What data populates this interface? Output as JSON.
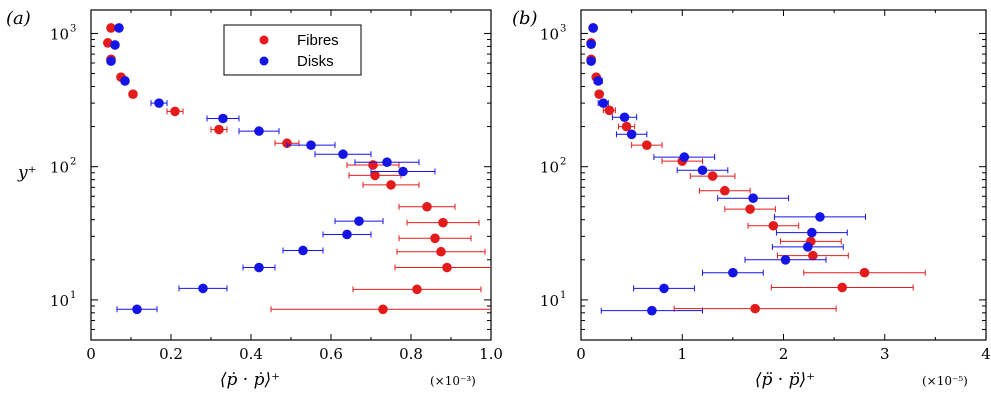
{
  "colors": {
    "fibres": "#e41b1b",
    "disks": "#1414e6",
    "axis": "#000000"
  },
  "legend": {
    "entries": [
      "Fibres",
      "Disks"
    ]
  },
  "chart_data": [
    {
      "type": "scatter",
      "panel_label": "(a)",
      "title": "",
      "xlabel": "⟨ṗ · ṗ⟩⁺",
      "ylabel": "y⁺",
      "x_multiplier": "(×10⁻³)",
      "xlim": [
        0,
        1.0
      ],
      "ylim": [
        5,
        1500
      ],
      "yscale": "log",
      "xticks": [
        "0",
        "0.2",
        "0.4",
        "0.6",
        "0.8",
        "1.0"
      ],
      "yticks": [
        {
          "base": "10",
          "exp": "1",
          "value": 10
        },
        {
          "base": "10",
          "exp": "2",
          "value": 100
        },
        {
          "base": "10",
          "exp": "3",
          "value": 1000
        }
      ],
      "legend_position": "top-center",
      "series": [
        {
          "name": "Fibres",
          "color": "#e41b1b",
          "points": [
            {
              "x": 0.05,
              "y": 1100,
              "err": 0.005
            },
            {
              "x": 0.042,
              "y": 850,
              "err": 0.005
            },
            {
              "x": 0.05,
              "y": 640,
              "err": 0.005
            },
            {
              "x": 0.075,
              "y": 470,
              "err": 0.008
            },
            {
              "x": 0.105,
              "y": 350,
              "err": 0.008
            },
            {
              "x": 0.21,
              "y": 260,
              "err": 0.02
            },
            {
              "x": 0.32,
              "y": 190,
              "err": 0.02
            },
            {
              "x": 0.49,
              "y": 150,
              "err": 0.03
            },
            {
              "x": 0.705,
              "y": 103,
              "err": 0.065
            },
            {
              "x": 0.71,
              "y": 86,
              "err": 0.065
            },
            {
              "x": 0.75,
              "y": 73,
              "err": 0.07
            },
            {
              "x": 0.84,
              "y": 50,
              "err": 0.07
            },
            {
              "x": 0.88,
              "y": 38,
              "err": 0.09
            },
            {
              "x": 0.86,
              "y": 29,
              "err": 0.09
            },
            {
              "x": 0.875,
              "y": 23,
              "err": 0.11
            },
            {
              "x": 0.89,
              "y": 17.5,
              "err": 0.13
            },
            {
              "x": 0.815,
              "y": 12,
              "err": 0.16
            },
            {
              "x": 0.73,
              "y": 8.5,
              "err": 0.28
            }
          ]
        },
        {
          "name": "Disks",
          "color": "#1414e6",
          "points": [
            {
              "x": 0.07,
              "y": 1100,
              "err": 0.008
            },
            {
              "x": 0.06,
              "y": 820,
              "err": 0.008
            },
            {
              "x": 0.05,
              "y": 620,
              "err": 0.008
            },
            {
              "x": 0.085,
              "y": 440,
              "err": 0.008
            },
            {
              "x": 0.17,
              "y": 300,
              "err": 0.02
            },
            {
              "x": 0.33,
              "y": 230,
              "err": 0.04
            },
            {
              "x": 0.42,
              "y": 185,
              "err": 0.05
            },
            {
              "x": 0.55,
              "y": 145,
              "err": 0.06
            },
            {
              "x": 0.63,
              "y": 124,
              "err": 0.07
            },
            {
              "x": 0.74,
              "y": 108,
              "err": 0.08
            },
            {
              "x": 0.78,
              "y": 92,
              "err": 0.08
            },
            {
              "x": 0.67,
              "y": 39,
              "err": 0.06
            },
            {
              "x": 0.64,
              "y": 31,
              "err": 0.06
            },
            {
              "x": 0.53,
              "y": 23.5,
              "err": 0.05
            },
            {
              "x": 0.42,
              "y": 17.5,
              "err": 0.04
            },
            {
              "x": 0.28,
              "y": 12.2,
              "err": 0.06
            },
            {
              "x": 0.115,
              "y": 8.5,
              "err": 0.05
            }
          ]
        }
      ]
    },
    {
      "type": "scatter",
      "panel_label": "(b)",
      "title": "",
      "xlabel": "⟨p̈ · p̈⟩⁺",
      "ylabel": "",
      "x_multiplier": "(×10⁻⁵)",
      "xlim": [
        0,
        4
      ],
      "ylim": [
        5,
        1500
      ],
      "yscale": "log",
      "xticks": [
        "0",
        "1",
        "2",
        "3",
        "4"
      ],
      "yticks": [
        {
          "base": "10",
          "exp": "1",
          "value": 10
        },
        {
          "base": "10",
          "exp": "2",
          "value": 100
        },
        {
          "base": "10",
          "exp": "3",
          "value": 1000
        }
      ],
      "series": [
        {
          "name": "Fibres",
          "color": "#e41b1b",
          "points": [
            {
              "x": 0.12,
              "y": 1100,
              "err": 0.02
            },
            {
              "x": 0.1,
              "y": 850,
              "err": 0.02
            },
            {
              "x": 0.1,
              "y": 640,
              "err": 0.02
            },
            {
              "x": 0.15,
              "y": 470,
              "err": 0.03
            },
            {
              "x": 0.18,
              "y": 350,
              "err": 0.03
            },
            {
              "x": 0.28,
              "y": 265,
              "err": 0.06
            },
            {
              "x": 0.45,
              "y": 200,
              "err": 0.08
            },
            {
              "x": 0.65,
              "y": 145,
              "err": 0.15
            },
            {
              "x": 1.0,
              "y": 110,
              "err": 0.2
            },
            {
              "x": 1.3,
              "y": 85,
              "err": 0.22
            },
            {
              "x": 1.42,
              "y": 66,
              "err": 0.25
            },
            {
              "x": 1.67,
              "y": 48,
              "err": 0.25
            },
            {
              "x": 1.9,
              "y": 36,
              "err": 0.25
            },
            {
              "x": 2.27,
              "y": 27.5,
              "err": 0.3
            },
            {
              "x": 2.29,
              "y": 21.5,
              "err": 0.35
            },
            {
              "x": 2.8,
              "y": 16,
              "err": 0.6
            },
            {
              "x": 2.58,
              "y": 12.4,
              "err": 0.7
            },
            {
              "x": 1.72,
              "y": 8.6,
              "err": 0.8
            }
          ]
        },
        {
          "name": "Disks",
          "color": "#1414e6",
          "points": [
            {
              "x": 0.12,
              "y": 1100,
              "err": 0.03
            },
            {
              "x": 0.1,
              "y": 830,
              "err": 0.03
            },
            {
              "x": 0.1,
              "y": 620,
              "err": 0.03
            },
            {
              "x": 0.17,
              "y": 440,
              "err": 0.04
            },
            {
              "x": 0.22,
              "y": 300,
              "err": 0.05
            },
            {
              "x": 0.43,
              "y": 235,
              "err": 0.12
            },
            {
              "x": 0.5,
              "y": 175,
              "err": 0.15
            },
            {
              "x": 1.02,
              "y": 118,
              "err": 0.3
            },
            {
              "x": 1.2,
              "y": 94,
              "err": 0.25
            },
            {
              "x": 1.7,
              "y": 58,
              "err": 0.35
            },
            {
              "x": 2.36,
              "y": 42,
              "err": 0.45
            },
            {
              "x": 2.28,
              "y": 32,
              "err": 0.35
            },
            {
              "x": 2.24,
              "y": 25,
              "err": 0.35
            },
            {
              "x": 2.02,
              "y": 20,
              "err": 0.4
            },
            {
              "x": 1.5,
              "y": 16,
              "err": 0.3
            },
            {
              "x": 0.82,
              "y": 12.2,
              "err": 0.3
            },
            {
              "x": 0.7,
              "y": 8.3,
              "err": 0.5
            }
          ]
        }
      ]
    }
  ]
}
